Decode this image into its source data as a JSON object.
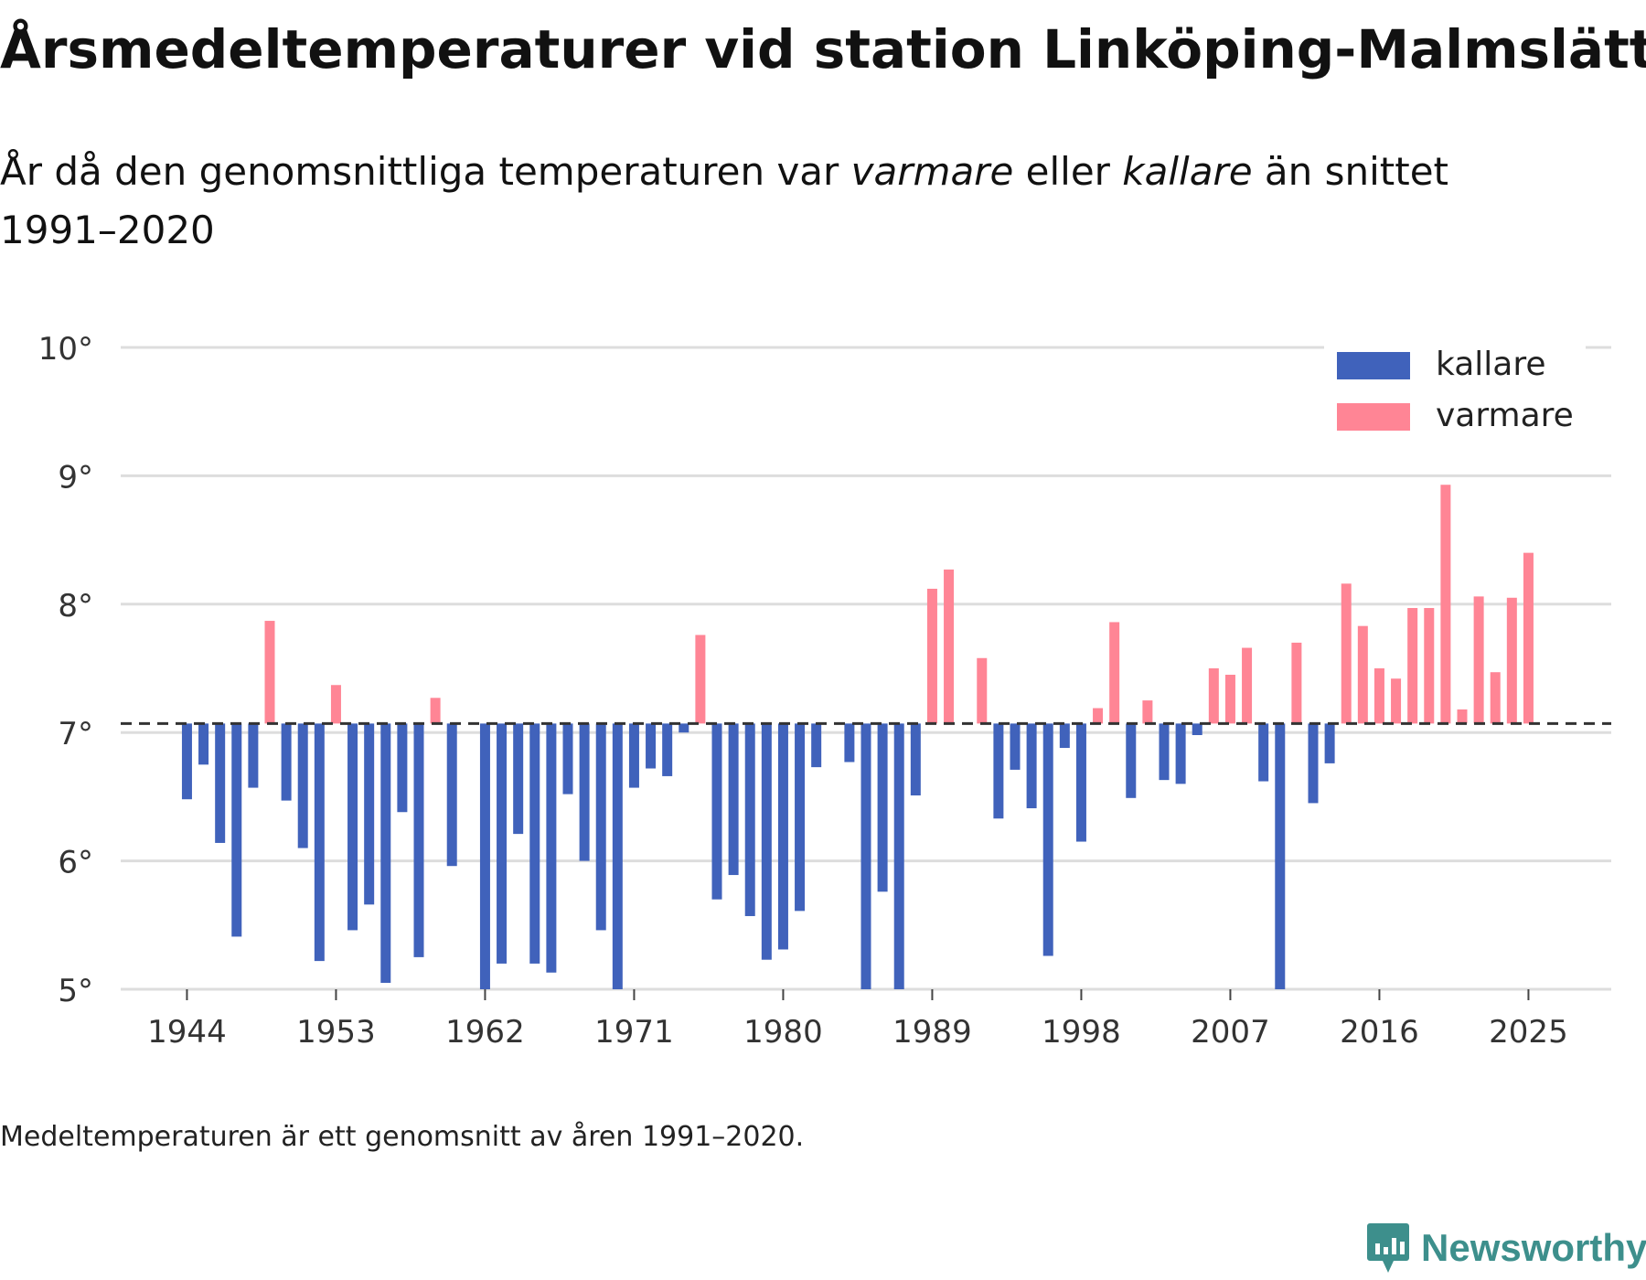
{
  "chart_data": {
    "type": "bar",
    "title": "Årsmedeltemperaturer vid station Linköping-Malmslätt",
    "subtitle": {
      "part1": "År då den genomsnittliga temperaturen var ",
      "warm_word": "varmare",
      "part2": " eller ",
      "cold_word": "kallare",
      "part3": " än snittet 1991–2020"
    },
    "baseline": 7.07,
    "ylim": [
      5,
      10
    ],
    "y_ticks": [
      {
        "value": 5,
        "label": "5°"
      },
      {
        "value": 6,
        "label": "6°"
      },
      {
        "value": 7,
        "label": "7°"
      },
      {
        "value": 8,
        "label": "8°"
      },
      {
        "value": 9,
        "label": "9°"
      },
      {
        "value": 10,
        "label": "10°"
      }
    ],
    "x_range": [
      1940,
      2030
    ],
    "x_ticks": [
      {
        "value": 1944,
        "label": "1944"
      },
      {
        "value": 1953,
        "label": "1953"
      },
      {
        "value": 1962,
        "label": "1962"
      },
      {
        "value": 1971,
        "label": "1971"
      },
      {
        "value": 1980,
        "label": "1980"
      },
      {
        "value": 1989,
        "label": "1989"
      },
      {
        "value": 1998,
        "label": "1998"
      },
      {
        "value": 2007,
        "label": "2007"
      },
      {
        "value": 2016,
        "label": "2016"
      },
      {
        "value": 2025,
        "label": "2025"
      }
    ],
    "legend": [
      {
        "key": "cold",
        "label": "kallare",
        "color": "#4062BB"
      },
      {
        "key": "warm",
        "label": "varmare",
        "color": "#FF8595"
      }
    ],
    "legend_position": "top-right",
    "years": [
      1944,
      1945,
      1946,
      1947,
      1948,
      1949,
      1950,
      1951,
      1952,
      1953,
      1954,
      1955,
      1956,
      1957,
      1958,
      1959,
      1960,
      1961,
      1962,
      1963,
      1964,
      1965,
      1966,
      1967,
      1968,
      1969,
      1970,
      1971,
      1972,
      1973,
      1974,
      1975,
      1976,
      1977,
      1978,
      1979,
      1980,
      1981,
      1982,
      1983,
      1984,
      1985,
      1986,
      1987,
      1988,
      1989,
      1990,
      1991,
      1992,
      1993,
      1994,
      1995,
      1996,
      1997,
      1998,
      1999,
      2000,
      2001,
      2002,
      2003,
      2004,
      2005,
      2006,
      2007,
      2008,
      2009,
      2010,
      2011,
      2012,
      2013,
      2014,
      2015,
      2016,
      2017,
      2018,
      2019,
      2020,
      2021,
      2022,
      2023,
      2024,
      2025
    ],
    "values": [
      6.48,
      6.75,
      6.14,
      5.41,
      6.57,
      7.87,
      6.47,
      6.1,
      5.22,
      7.37,
      5.46,
      5.66,
      5.05,
      6.38,
      5.25,
      7.27,
      5.96,
      7.07,
      4.97,
      5.2,
      6.21,
      5.2,
      5.13,
      6.52,
      6.0,
      5.46,
      4.95,
      6.57,
      6.72,
      6.66,
      7.0,
      7.76,
      5.7,
      5.89,
      5.57,
      5.23,
      5.31,
      5.61,
      6.73,
      7.07,
      6.77,
      4.95,
      5.76,
      4.95,
      6.51,
      8.12,
      8.27,
      7.07,
      7.58,
      6.33,
      6.71,
      6.41,
      5.26,
      6.88,
      6.15,
      7.19,
      7.86,
      6.49,
      7.25,
      6.63,
      6.6,
      6.98,
      7.5,
      7.45,
      7.66,
      6.62,
      4.95,
      7.7,
      6.45,
      6.76,
      8.16,
      7.83,
      7.5,
      7.42,
      7.97,
      7.97,
      8.93,
      7.18,
      8.06,
      7.47,
      8.05,
      8.4
    ]
  },
  "footnote": "Medeltemperaturen är ett genomsnitt av åren 1991–2020.",
  "brand": {
    "name": "Newsworthy",
    "color": "#3d8f8c"
  },
  "colors": {
    "grid": "#dddddd",
    "baseline": "#333333",
    "axis_text": "#333333"
  }
}
